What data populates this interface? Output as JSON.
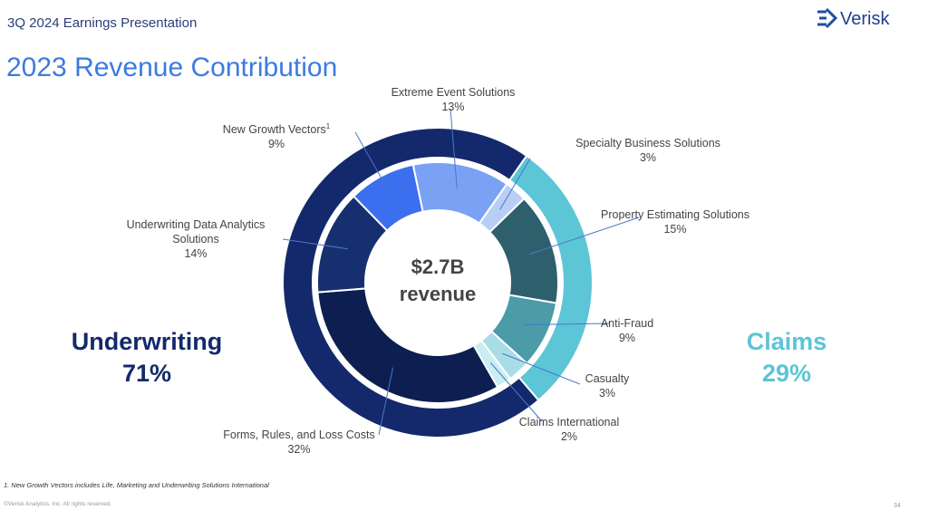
{
  "header": {
    "presentation": "3Q 2024 Earnings Presentation",
    "logo": "Verisk"
  },
  "chart_data": {
    "type": "pie",
    "title": "2023 Revenue Contribution",
    "center_value": "$2.7B",
    "center_label": "revenue",
    "inner": {
      "categories": [
        "Specialty Business Solutions",
        "Property Estimating Solutions",
        "Anti-Fraud",
        "Casualty",
        "Claims International",
        "Forms, Rules, and Loss Costs",
        "Underwriting Data Analytics Solutions",
        "New Growth Vectors",
        "Extreme Event Solutions"
      ],
      "values": [
        3,
        15,
        9,
        3,
        2,
        32,
        14,
        9,
        13
      ],
      "value_labels": [
        "3%",
        "15%",
        "9%",
        "3%",
        "2%",
        "32%",
        "14%",
        "9%",
        "13%"
      ],
      "colors": [
        "#b9cef5",
        "#2e5f6c",
        "#4b9ba8",
        "#a9dde6",
        "#c8edf3",
        "#0c1f50",
        "#16306f",
        "#3b6ff0",
        "#7ba1f5"
      ],
      "note_ref": "1"
    },
    "outer": {
      "categories": [
        "Claims",
        "Underwriting"
      ],
      "values": [
        29,
        71
      ],
      "value_labels": [
        "29%",
        "71%"
      ],
      "colors": [
        "#5cc5d6",
        "#13296b"
      ]
    }
  },
  "footnote": "1. New Growth Vectors includes Life, Marketing and Underwriting Solutions International",
  "copyright": "©Verisk Analytics, Inc. All rights reserved.",
  "page_number": 34
}
